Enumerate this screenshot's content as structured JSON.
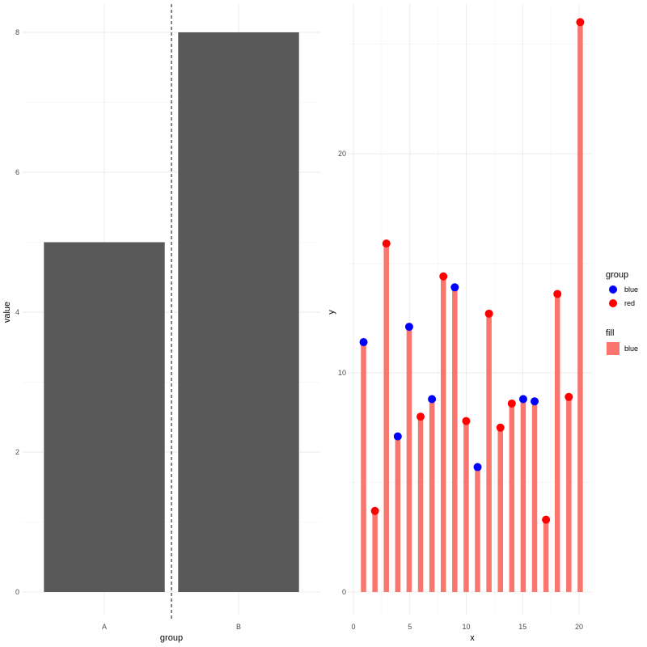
{
  "chart_data": [
    {
      "type": "bar",
      "categories": [
        "A",
        "B"
      ],
      "values": [
        5,
        8
      ],
      "xlabel": "group",
      "ylabel": "value",
      "ylim": [
        0,
        8
      ],
      "yticks": [
        0,
        2,
        4,
        6,
        8
      ],
      "bar_color": "#595959",
      "vline": {
        "x": 1.5,
        "style": "dashed"
      },
      "grid": true
    },
    {
      "type": "bar",
      "overlay": "scatter",
      "xlabel": "x",
      "ylabel": "y",
      "xlim": [
        0,
        21
      ],
      "ylim": [
        0,
        26
      ],
      "xticks": [
        0,
        5,
        10,
        15,
        20
      ],
      "yticks": [
        0,
        10,
        20
      ],
      "x": [
        1,
        2,
        3,
        4,
        5,
        6,
        7,
        8,
        9,
        10,
        11,
        12,
        13,
        14,
        15,
        16,
        17,
        18,
        19,
        20
      ],
      "bar_values": [
        11.4,
        3.7,
        15.9,
        7.1,
        12.1,
        8.0,
        8.8,
        14.4,
        13.9,
        7.8,
        5.7,
        12.7,
        7.5,
        8.6,
        8.8,
        8.7,
        3.3,
        13.6,
        8.9,
        26.0
      ],
      "point_groups": [
        "blue",
        "red",
        "red",
        "blue",
        "blue",
        "red",
        "blue",
        "red",
        "blue",
        "red",
        "blue",
        "red",
        "red",
        "red",
        "blue",
        "blue",
        "red",
        "red",
        "red",
        "red"
      ],
      "bar_fill": "#f8766d",
      "legend": {
        "placement": "right",
        "group": {
          "title": "group",
          "items": [
            {
              "label": "blue",
              "color": "#0000ff"
            },
            {
              "label": "red",
              "color": "#ff0000"
            }
          ]
        },
        "fill": {
          "title": "fill",
          "items": [
            {
              "label": "blue",
              "color": "#f8766d"
            }
          ]
        }
      },
      "grid": true
    }
  ]
}
